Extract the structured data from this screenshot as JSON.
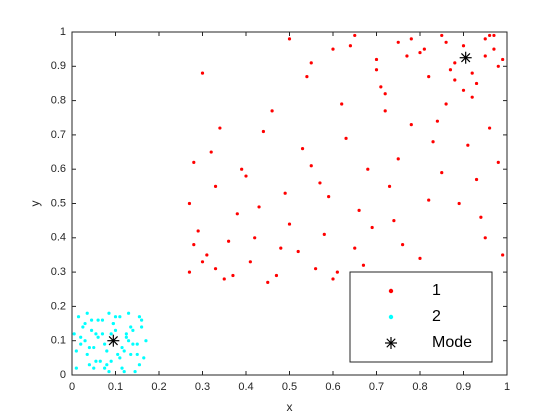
{
  "chart_data": {
    "type": "scatter",
    "xlabel": "x",
    "ylabel": "y",
    "xlim": [
      0,
      1
    ],
    "ylim": [
      0,
      1
    ],
    "xticks": [
      0,
      0.1,
      0.2,
      0.3,
      0.4,
      0.5,
      0.6,
      0.7,
      0.8,
      0.9,
      1
    ],
    "yticks": [
      0,
      0.1,
      0.2,
      0.3,
      0.4,
      0.5,
      0.6,
      0.7,
      0.8,
      0.9,
      1
    ],
    "grid": false,
    "legend": "southeast",
    "series": [
      {
        "name": "1",
        "color": "#ff0000",
        "marker": "dot",
        "x": [
          0.27,
          0.29,
          0.31,
          0.33,
          0.28,
          0.35,
          0.38,
          0.41,
          0.44,
          0.3,
          0.36,
          0.4,
          0.47,
          0.5,
          0.53,
          0.56,
          0.59,
          0.62,
          0.65,
          0.68,
          0.71,
          0.74,
          0.77,
          0.8,
          0.83,
          0.86,
          0.89,
          0.92,
          0.95,
          0.98,
          0.27,
          0.32,
          0.37,
          0.42,
          0.46,
          0.52,
          0.57,
          0.61,
          0.66,
          0.7,
          0.75,
          0.79,
          0.84,
          0.88,
          0.93,
          0.97,
          0.99,
          0.3,
          0.34,
          0.39,
          0.45,
          0.49,
          0.54,
          0.58,
          0.63,
          0.67,
          0.72,
          0.76,
          0.81,
          0.85,
          0.9,
          0.94,
          0.96,
          0.28,
          0.33,
          0.43,
          0.48,
          0.55,
          0.6,
          0.64,
          0.69,
          0.73,
          0.78,
          0.82,
          0.87,
          0.91,
          0.95,
          0.98,
          0.5,
          0.55,
          0.6,
          0.65,
          0.7,
          0.75,
          0.8,
          0.85,
          0.9,
          0.95,
          0.99,
          0.72,
          0.82,
          0.88,
          0.93,
          0.97,
          0.78,
          0.86,
          0.92,
          0.96
        ],
        "y": [
          0.3,
          0.42,
          0.35,
          0.55,
          0.62,
          0.28,
          0.47,
          0.33,
          0.71,
          0.88,
          0.39,
          0.58,
          0.29,
          0.44,
          0.66,
          0.31,
          0.52,
          0.79,
          0.37,
          0.6,
          0.84,
          0.45,
          0.93,
          0.34,
          0.68,
          0.97,
          0.5,
          0.81,
          0.4,
          0.9,
          0.5,
          0.65,
          0.29,
          0.4,
          0.77,
          0.36,
          0.56,
          0.3,
          0.48,
          0.92,
          0.63,
          0.28,
          0.74,
          0.86,
          0.57,
          0.99,
          0.35,
          0.33,
          0.72,
          0.6,
          0.27,
          0.53,
          0.87,
          0.41,
          0.69,
          0.32,
          0.77,
          0.38,
          0.95,
          0.59,
          0.83,
          0.46,
          0.72,
          0.38,
          0.31,
          0.49,
          0.37,
          0.61,
          0.28,
          0.96,
          0.43,
          0.55,
          0.98,
          0.51,
          0.89,
          0.67,
          0.93,
          0.62,
          0.98,
          0.91,
          0.95,
          0.99,
          0.89,
          0.97,
          0.94,
          0.99,
          0.96,
          0.98,
          0.92,
          0.82,
          0.87,
          0.91,
          0.85,
          0.95,
          0.73,
          0.79,
          0.88,
          0.99
        ]
      },
      {
        "name": "2",
        "color": "#00ffff",
        "marker": "dot",
        "x": [
          0.01,
          0.03,
          0.05,
          0.07,
          0.09,
          0.11,
          0.13,
          0.15,
          0.16,
          0.02,
          0.04,
          0.06,
          0.08,
          0.1,
          0.12,
          0.14,
          0.165,
          0.015,
          0.035,
          0.055,
          0.075,
          0.095,
          0.115,
          0.135,
          0.155,
          0.02,
          0.045,
          0.065,
          0.085,
          0.105,
          0.125,
          0.145,
          0.16,
          0.01,
          0.03,
          0.05,
          0.07,
          0.09,
          0.11,
          0.13,
          0.15,
          0.025,
          0.04,
          0.06,
          0.08,
          0.1,
          0.12,
          0.14,
          0.17,
          0.005,
          0.035,
          0.055,
          0.075,
          0.095,
          0.115,
          0.135,
          0.155,
          0.045,
          0.085,
          0.125
        ],
        "y": [
          0.02,
          0.15,
          0.08,
          0.12,
          0.04,
          0.17,
          0.1,
          0.06,
          0.14,
          0.11,
          0.03,
          0.16,
          0.07,
          0.13,
          0.01,
          0.09,
          0.05,
          0.17,
          0.06,
          0.12,
          0.02,
          0.15,
          0.08,
          0.14,
          0.03,
          0.09,
          0.13,
          0.04,
          0.18,
          0.06,
          0.11,
          0.01,
          0.16,
          0.07,
          0.1,
          0.02,
          0.16,
          0.12,
          0.05,
          0.18,
          0.09,
          0.14,
          0.08,
          0.11,
          0.03,
          0.17,
          0.07,
          0.13,
          0.1,
          0.12,
          0.18,
          0.04,
          0.09,
          0.15,
          0.02,
          0.06,
          0.17,
          0.16,
          0.01,
          0.12
        ]
      },
      {
        "name": "Mode",
        "color": "#000000",
        "marker": "asterisk",
        "x": [
          0.095,
          0.905
        ],
        "y": [
          0.1,
          0.925
        ]
      }
    ]
  }
}
